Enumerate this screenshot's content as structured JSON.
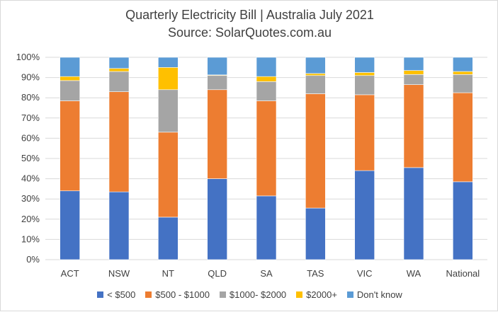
{
  "chart_data": {
    "type": "bar",
    "stacked": "percent",
    "title": "Quarterly Electricity Bill | Australia July 2021",
    "subtitle": "Source: SolarQuotes.com.au",
    "categories": [
      "ACT",
      "NSW",
      "NT",
      "QLD",
      "SA",
      "TAS",
      "VIC",
      "WA",
      "National"
    ],
    "series": [
      {
        "name": "< $500",
        "color": "#4472C4",
        "values": [
          34,
          33.5,
          21,
          40,
          31.5,
          25.5,
          44,
          45.5,
          38.5
        ]
      },
      {
        "name": "$500 - $1000",
        "color": "#ED7D31",
        "values": [
          44.5,
          49.5,
          42,
          44,
          47,
          56.5,
          37.5,
          41,
          44
        ]
      },
      {
        "name": "$1000- $2000",
        "color": "#A5A5A5",
        "values": [
          10,
          10,
          21,
          7,
          9.5,
          9,
          9.5,
          5,
          9
        ]
      },
      {
        "name": "$2000+",
        "color": "#FFC000",
        "values": [
          2,
          1.5,
          11,
          0.3,
          2.5,
          1,
          1.5,
          2,
          1.5
        ]
      },
      {
        "name": "Don't know",
        "color": "#5B9BD5",
        "values": [
          9.5,
          5.5,
          5,
          8.7,
          9.5,
          8,
          7.5,
          6.5,
          7
        ]
      }
    ],
    "yticks": [
      "0%",
      "10%",
      "20%",
      "30%",
      "40%",
      "50%",
      "60%",
      "70%",
      "80%",
      "90%",
      "100%"
    ],
    "ylim": [
      0,
      100
    ],
    "grid": true,
    "legend_position": "bottom"
  }
}
